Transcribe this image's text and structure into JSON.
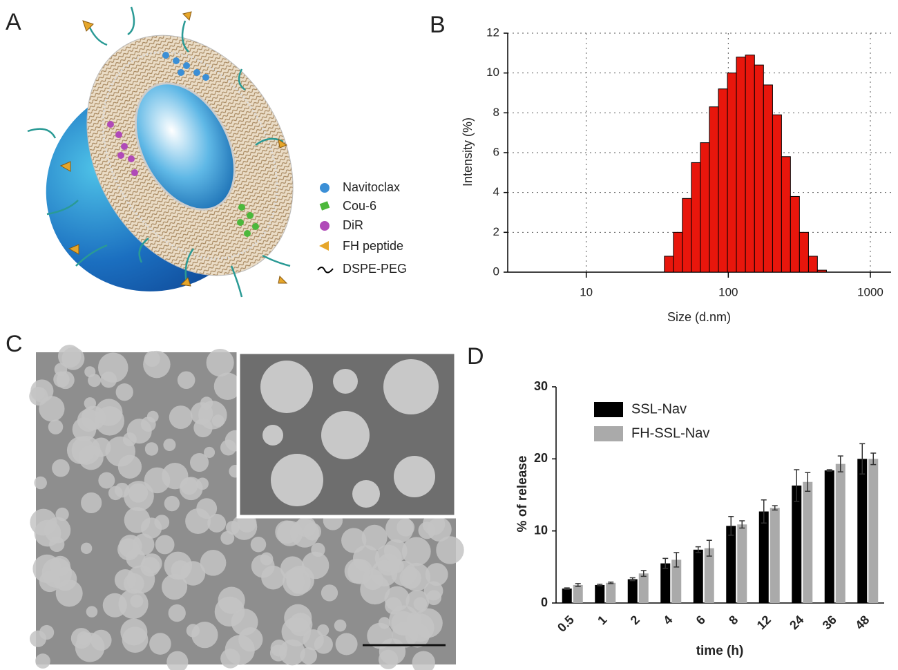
{
  "panel_labels": [
    "A",
    "B",
    "C",
    "D"
  ],
  "legend_a": [
    "Navitoclax",
    "Cou-6",
    "DiR",
    "FH peptide",
    "DSPE-PEG"
  ],
  "chart_data": [
    {
      "type": "histogram",
      "xlabel": "Size (d.nm)",
      "ylabel": "Intensity (%)",
      "bins": [
        35.5,
        41.1,
        47.5,
        55,
        63.6,
        73.6,
        85.2,
        98.6,
        114,
        132,
        153,
        177,
        205,
        237,
        274,
        317,
        367,
        424,
        491
      ],
      "values": [
        0.8,
        2.0,
        3.7,
        5.5,
        6.5,
        8.3,
        9.2,
        10.0,
        10.8,
        10.9,
        10.4,
        9.4,
        7.9,
        5.8,
        3.8,
        2.0,
        0.8,
        0.1
      ],
      "color": "#e8160c",
      "xlog": true,
      "xlim": [
        2.8,
        1400
      ],
      "xticks": [
        10,
        100,
        1000
      ],
      "ylim": [
        0,
        12
      ],
      "yticks": [
        0,
        2,
        4,
        6,
        8,
        10,
        12
      ],
      "grid": true
    },
    {
      "type": "bar",
      "xlabel": "time (h)",
      "ylabel": "% of release",
      "categories": [
        "0.5",
        "1",
        "2",
        "4",
        "6",
        "8",
        "12",
        "24",
        "36",
        "48"
      ],
      "series": [
        {
          "name": "SSL-Nav",
          "color": "#000000",
          "values": [
            2.0,
            2.5,
            3.3,
            5.5,
            7.4,
            10.7,
            12.7,
            16.3,
            18.4,
            20.0
          ],
          "errors": [
            0.1,
            0.1,
            0.2,
            0.7,
            0.4,
            1.3,
            1.6,
            2.2,
            0.1,
            2.1
          ]
        },
        {
          "name": "FH-SSL-Nav",
          "color": "#aaaaaa",
          "values": [
            2.5,
            2.8,
            4.1,
            6.0,
            7.6,
            10.9,
            13.2,
            16.8,
            19.3,
            20.0
          ],
          "errors": [
            0.2,
            0.1,
            0.4,
            1.0,
            1.1,
            0.5,
            0.3,
            1.3,
            1.1,
            0.8
          ]
        }
      ],
      "ylim": [
        0,
        30
      ],
      "yticks": [
        0,
        10,
        20,
        30
      ],
      "grid": false,
      "legend": "top-left"
    }
  ]
}
